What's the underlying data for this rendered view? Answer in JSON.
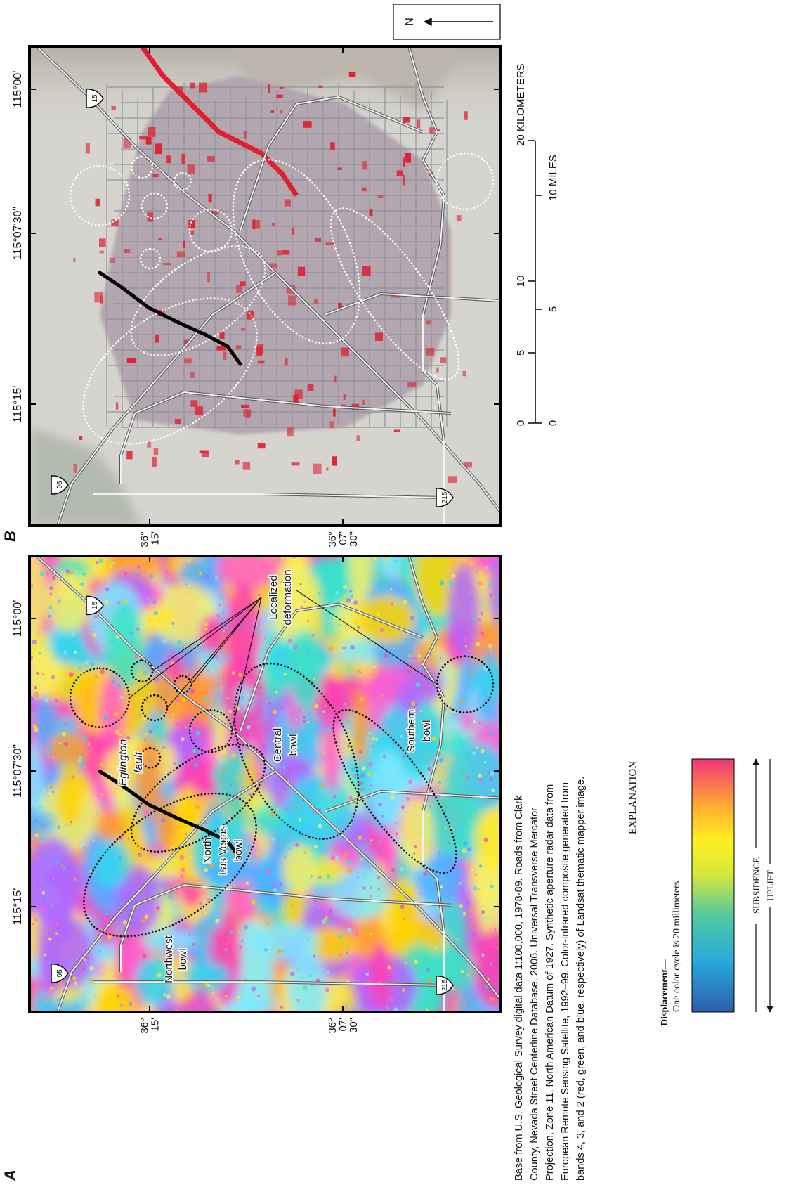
{
  "panels": [
    {
      "letter": "A",
      "longitudes": [
        "115°15'",
        "115°07'30\"",
        "115°00'"
      ],
      "latitudes": [
        [
          "36°",
          "15'"
        ],
        [
          "36°",
          "07'",
          "30\""
        ]
      ],
      "highway_shields": [
        "95",
        "15",
        "215"
      ],
      "labels": [
        [
          "Northwest",
          "bowl"
        ],
        [
          "North",
          "Las Vegas",
          "bowl"
        ],
        [
          "Central",
          "bowl"
        ],
        [
          "Southern",
          "bowl"
        ]
      ],
      "fault_label": [
        "Eglington",
        "fault"
      ],
      "callout": [
        "Localized",
        "deformation"
      ]
    },
    {
      "letter": "B",
      "longitudes": [
        "115°15'",
        "115°07'30\"",
        "115°00'"
      ],
      "latitudes": [
        [
          "36°",
          "15'"
        ],
        [
          "36°",
          "07'",
          "30\""
        ]
      ],
      "highway_shields": [
        "95",
        "15",
        "215"
      ]
    }
  ],
  "base_note": [
    "Base from U.S. Geological Survey digital data 1:100,000, 1978-89. Roads from Clark",
    "County, Nevada Street Centerline Database, 2006. Universal Transverse Mercator",
    "Projection, Zone 11, North American Datum of 1927. Synthetic aperture radar data from",
    "European Remote Sensing Satellite, 1992–99. Color-infrared composite generated from",
    "bands 4, 3, and 2 (red, green, and blue, respectively) of Landsat thematic mapper image."
  ],
  "explanation": {
    "title": "EXPLANATION",
    "heading": "Displacement—",
    "description": "One color cycle is 20 millimeters",
    "subsidence": "SUBSIDENCE",
    "uplift": "UPLIFT"
  },
  "scale_bar": {
    "kilometers": [
      "0",
      "5",
      "10",
      "20 KILOMETERS"
    ],
    "miles": [
      "0",
      "5",
      "10 MILES"
    ]
  },
  "north_arrow": "N"
}
